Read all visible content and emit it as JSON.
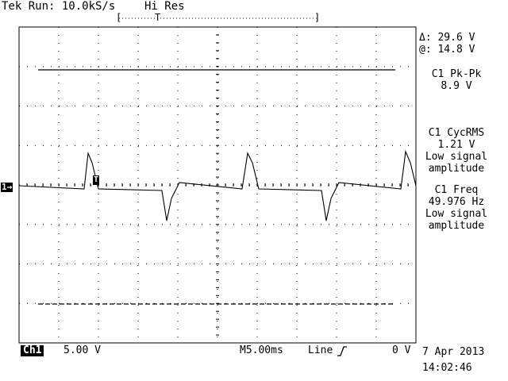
{
  "header": {
    "status": "Tek Run: 10.0kS/s",
    "acq_mode": "Hi Res",
    "record_bracket_left": "[",
    "record_bracket_right": "]",
    "trigger_pos_marker": "T"
  },
  "cursor_readout": {
    "delta": "Δ: 29.6 V",
    "at": "@: 14.8 V"
  },
  "measurements": {
    "pkpk_label": "C1 Pk-Pk",
    "pkpk_value": "8.9 V",
    "cycrms_label": "C1 CycRMS",
    "cycrms_value": "1.21 V",
    "cycrms_note1": "Low signal",
    "cycrms_note2": "amplitude",
    "freq_label": "C1 Freq",
    "freq_value": "49.976 Hz",
    "freq_note1": "Low signal",
    "freq_note2": "amplitude"
  },
  "channel": {
    "ground_marker": "1→",
    "trigger_marker": "T"
  },
  "footer": {
    "ch_label": "Ch1",
    "volts_per_div": "5.00 V",
    "timebase": "M5.00ms",
    "trigger_source": "Line",
    "trigger_slope_icon": "rising-edge-icon",
    "trigger_level": "0 V",
    "date": "7 Apr 2013",
    "time": "14:02:46"
  },
  "colors": {
    "background": "#ffffff",
    "trace": "#000000",
    "graticule": "#000000"
  }
}
